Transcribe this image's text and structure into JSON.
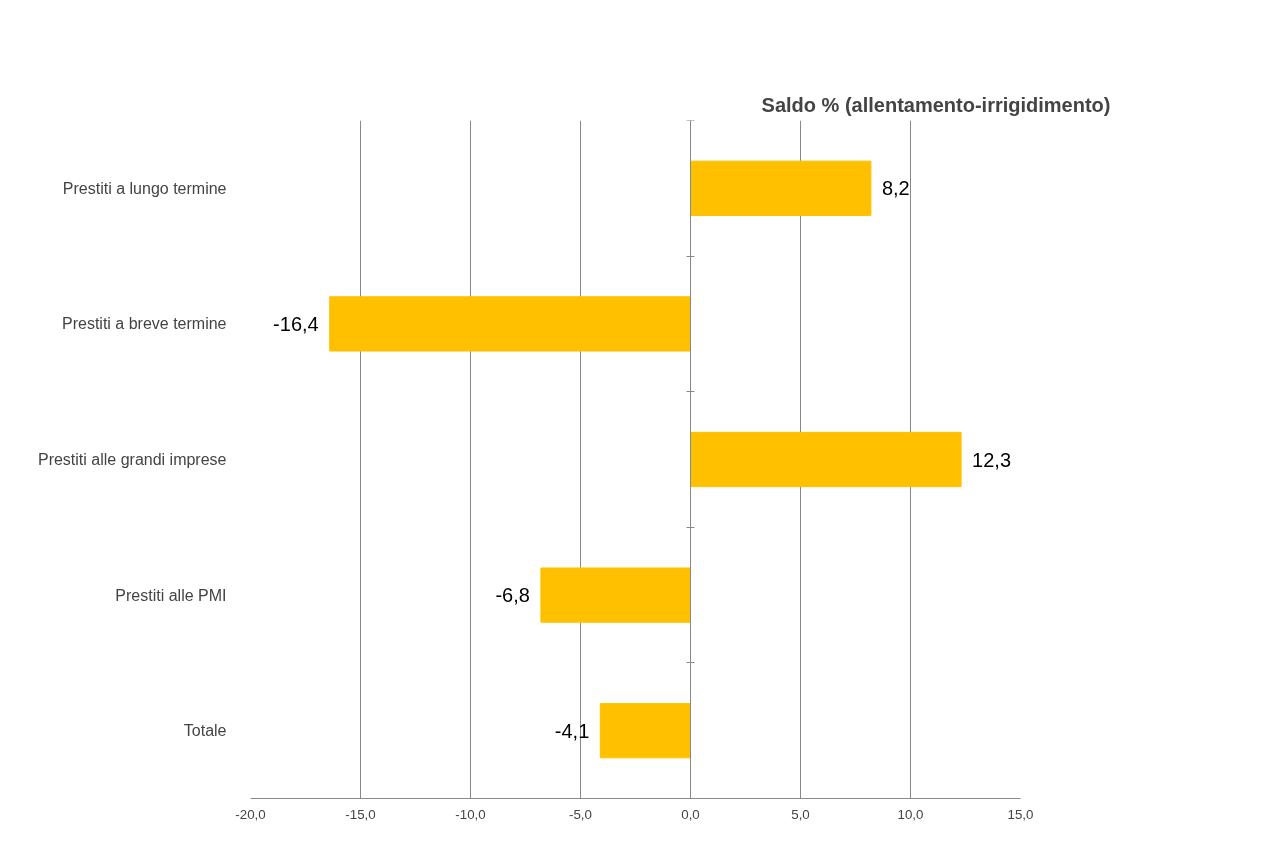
{
  "chart_data": {
    "type": "bar",
    "orientation": "horizontal",
    "title": "Saldo % (allentamento-irrigidimento)",
    "categories": [
      "Prestiti a lungo termine",
      "Prestiti a breve termine",
      "Prestiti alle grandi imprese",
      "Prestiti alle PMI",
      "Totale"
    ],
    "values": [
      8.2,
      -16.4,
      12.3,
      -6.8,
      -4.1
    ],
    "value_labels": [
      "8,2",
      "-16,4",
      "12,3",
      "-6,8",
      "-4,1"
    ],
    "color": "#ffc000",
    "xlim": [
      -20,
      15
    ],
    "xticks": [
      {
        "value": -20,
        "label": "-20,0"
      },
      {
        "value": -15,
        "label": "-15,0"
      },
      {
        "value": -10,
        "label": "-10,0"
      },
      {
        "value": -5,
        "label": "-5,0"
      },
      {
        "value": 0,
        "label": "0,0"
      },
      {
        "value": 5,
        "label": "5,0"
      },
      {
        "value": 10,
        "label": "10,0"
      },
      {
        "value": 15,
        "label": "15,0"
      }
    ],
    "grid": "x"
  }
}
